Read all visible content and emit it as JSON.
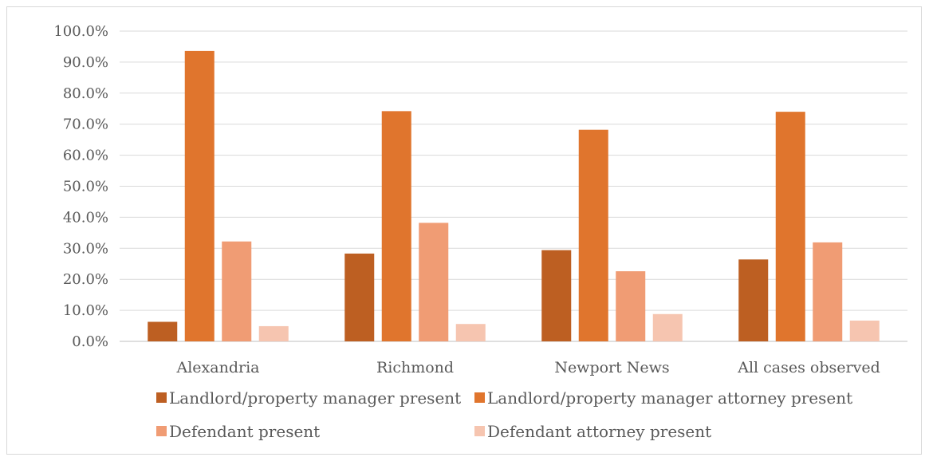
{
  "chart_data": {
    "type": "bar",
    "categories": [
      "Alexandria",
      "Richmond",
      "Newport News",
      "All cases observed"
    ],
    "series": [
      {
        "name": "Landlord/property manager present",
        "color": "#bd5f22",
        "values": [
          6.3,
          28.3,
          29.4,
          26.4
        ]
      },
      {
        "name": "Landlord/property manager attorney present",
        "color": "#e0752d",
        "values": [
          93.6,
          74.2,
          68.2,
          74.0
        ]
      },
      {
        "name": "Defendant present",
        "color": "#f09c74",
        "values": [
          32.2,
          38.2,
          22.6,
          31.9
        ]
      },
      {
        "name": "Defendant attorney present",
        "color": "#f6c5b0",
        "values": [
          4.9,
          5.6,
          8.8,
          6.7
        ]
      }
    ],
    "y_ticks": [
      "0.0%",
      "10.0%",
      "20.0%",
      "30.0%",
      "40.0%",
      "50.0%",
      "60.0%",
      "70.0%",
      "80.0%",
      "90.0%",
      "100.0%"
    ],
    "ylim": [
      0,
      100
    ],
    "grid": true,
    "legend_position": "bottom"
  }
}
